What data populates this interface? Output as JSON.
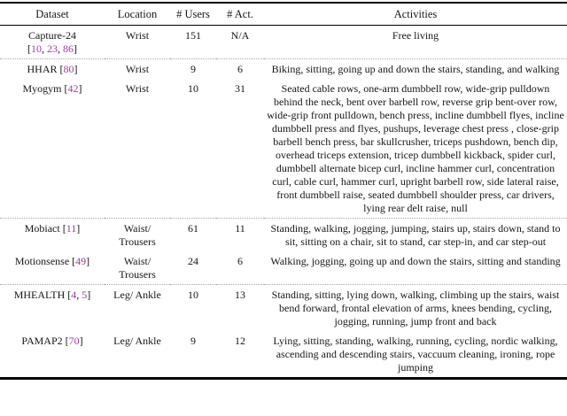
{
  "page": {
    "background": "#ffffff",
    "rule_color": "#000000",
    "citation_color": "#A03CA0",
    "separator_style": "dotted"
  },
  "table": {
    "columns": [
      "Dataset",
      "Location",
      "# Users",
      "# Act.",
      "Activities"
    ],
    "rows": [
      {
        "dataset": "Capture-24",
        "citations": [
          "10",
          "23",
          "86"
        ],
        "location": "Wrist",
        "num_users": "151",
        "num_activities": "N/A",
        "activities": "Free living",
        "separator_after": true
      },
      {
        "dataset": "HHAR",
        "citations": [
          "80"
        ],
        "location": "Wrist",
        "num_users": "9",
        "num_activities": "6",
        "activities": "Biking, sitting, going up and down the stairs, standing, and walking",
        "separator_after": false
      },
      {
        "dataset": "Myogym",
        "citations": [
          "42"
        ],
        "location": "Wrist",
        "num_users": "10",
        "num_activities": "31",
        "activities": "Seated cable rows, one-arm dumbbell row, wide-grip pulldown behind the neck, bent over barbell row, reverse grip bent-over row, wide-grip front pulldown, bench press, incline dumbbell flyes, incline dumbbell press and flyes, pushups, leverage chest press , close-grip barbell bench press, bar skullcrusher, triceps pushdown, bench dip, overhead triceps extension, tricep dumbbell kickback, spider curl, dumbbell alternate bicep curl, incline hammer curl, concentration curl, cable curl, hammer curl, upright barbell row, side lateral raise, front dumbbell raise, seated dumbbell shoulder press, car drivers, lying rear delt raise, null",
        "separator_after": true
      },
      {
        "dataset": "Mobiact",
        "citations": [
          "11"
        ],
        "location": "Waist/ Trousers",
        "num_users": "61",
        "num_activities": "11",
        "activities": "Standing, walking, jogging, jumping, stairs up, stairs down, stand to sit, sitting on a chair, sit to stand, car step-in, and car step-out",
        "separator_after": false
      },
      {
        "dataset": "Motionsense",
        "citations": [
          "49"
        ],
        "location": "Waist/ Trousers",
        "num_users": "24",
        "num_activities": "6",
        "activities": "Walking, jogging, going up and down the stairs, sitting and standing",
        "separator_after": true
      },
      {
        "dataset": "MHEALTH",
        "citations": [
          "4",
          "5"
        ],
        "location": "Leg/ Ankle",
        "num_users": "10",
        "num_activities": "13",
        "activities": "Standing, sitting, lying down, walking, climbing up the stairs, waist bend forward, frontal elevation of arms, knees bending, cycling, jogging, running, jump front and back",
        "separator_after": false
      },
      {
        "dataset": "PAMAP2",
        "citations": [
          "70"
        ],
        "location": "Leg/ Ankle",
        "num_users": "9",
        "num_activities": "12",
        "activities": "Lying, sitting, standing, walking, running, cycling, nordic walking, ascending and descending stairs, vaccuum cleaning, ironing, rope jumping",
        "separator_after": false
      }
    ]
  }
}
